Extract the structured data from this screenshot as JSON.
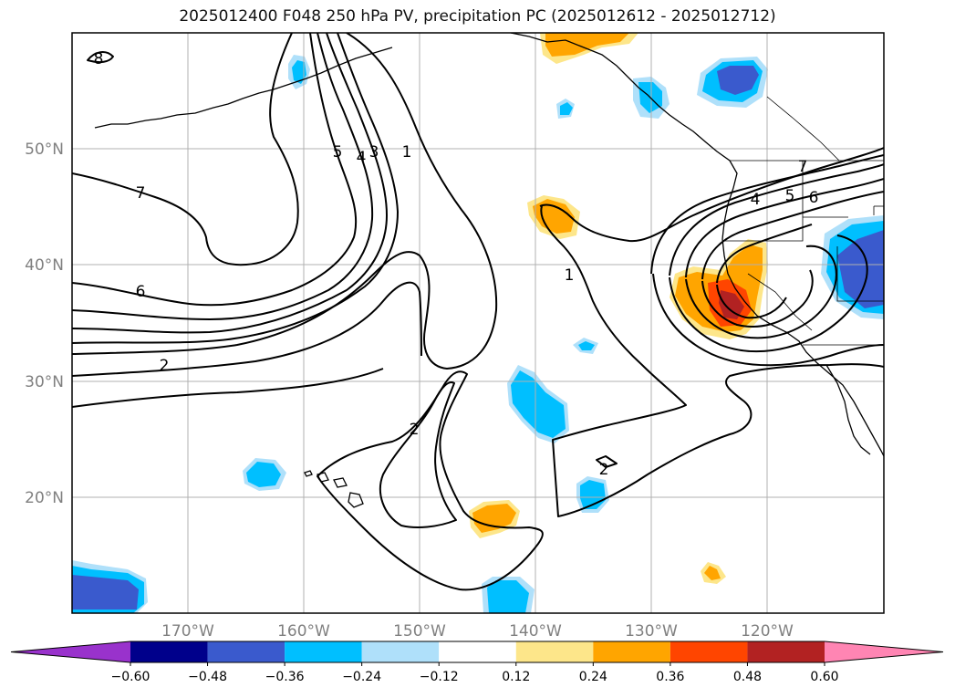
{
  "title": "2025012400 F048 250 hPa PV, precipitation PC (2025012612 - 2025012712)",
  "lat_labels": [
    "50°N",
    "40°N",
    "30°N",
    "20°N"
  ],
  "lon_labels": [
    "170°W",
    "160°W",
    "150°W",
    "140°W",
    "130°W",
    "120°W"
  ],
  "colorbar": {
    "ticks": [
      "−0.60",
      "−0.48",
      "−0.36",
      "−0.24",
      "−0.12",
      "0.12",
      "0.24",
      "0.36",
      "0.48",
      "0.60"
    ],
    "colors": [
      "#9932cc",
      "#00008b",
      "#3a5acd",
      "#00bfff",
      "#afe0fa",
      "#ffffff",
      "#fde68a",
      "#ffa500",
      "#ff4500",
      "#b22222",
      "#ff85b3"
    ]
  },
  "contour_labels": {
    "c8": "8",
    "c7": "7",
    "c6a": "6",
    "c2a": "2",
    "c5a": "5",
    "c4a": "4",
    "c3a": "3",
    "c1a": "1",
    "c1b": "1",
    "c2b": "2",
    "c2c": "2",
    "c4b": "4",
    "c5b": "5",
    "c6b": "6",
    "c7b": "7"
  },
  "chart_data": {
    "type": "map",
    "map_extent": {
      "lon": [
        -180,
        -110
      ],
      "lat": [
        10,
        60
      ]
    },
    "grid": true,
    "contour_field": "250 hPa PV",
    "contour_levels": [
      1,
      2,
      3,
      4,
      5,
      6,
      7,
      8
    ],
    "shaded_field": "precipitation PC",
    "shading_levels": [
      -0.6,
      -0.48,
      -0.36,
      -0.24,
      -0.12,
      0.12,
      0.24,
      0.36,
      0.48,
      0.6
    ]
  }
}
